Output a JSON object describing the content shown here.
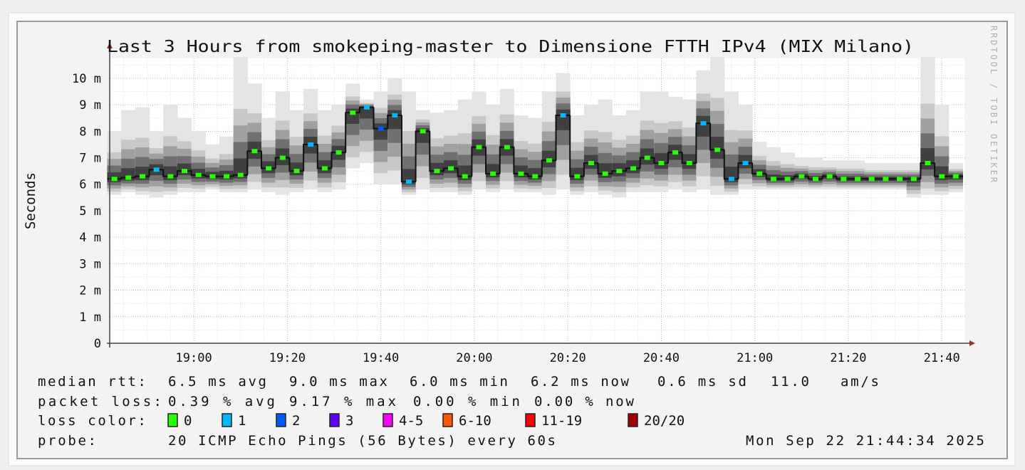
{
  "chart_data": {
    "type": "line",
    "title": "Last 3 Hours from smokeping-master to Dimensione FTTH IPv4 (MIX Milano)",
    "ylabel": "Seconds",
    "watermark": "RRDTOOL / TOBI OETIKER",
    "ylim": [
      0,
      10.75
    ],
    "y_unit": "ms",
    "yticks": [
      {
        "value": 0,
        "label": "0"
      },
      {
        "value": 1,
        "label": "1 m"
      },
      {
        "value": 2,
        "label": "2 m"
      },
      {
        "value": 3,
        "label": "3 m"
      },
      {
        "value": 4,
        "label": "4 m"
      },
      {
        "value": 5,
        "label": "5 m"
      },
      {
        "value": 6,
        "label": "6 m"
      },
      {
        "value": 7,
        "label": "7 m"
      },
      {
        "value": 8,
        "label": "8 m"
      },
      {
        "value": 9,
        "label": "9 m"
      },
      {
        "value": 10,
        "label": "10 m"
      }
    ],
    "xlim": [
      "18:42",
      "21:45"
    ],
    "xticks": [
      "19:00",
      "19:20",
      "19:40",
      "20:00",
      "20:20",
      "20:40",
      "21:00",
      "21:20",
      "21:40"
    ],
    "grid": true,
    "x": [
      "18:43",
      "18:46",
      "18:49",
      "18:52",
      "18:55",
      "18:58",
      "19:01",
      "19:04",
      "19:07",
      "19:10",
      "19:13",
      "19:16",
      "19:19",
      "19:22",
      "19:25",
      "19:28",
      "19:31",
      "19:34",
      "19:37",
      "19:40",
      "19:43",
      "19:46",
      "19:49",
      "19:52",
      "19:55",
      "19:58",
      "20:01",
      "20:04",
      "20:07",
      "20:10",
      "20:13",
      "20:16",
      "20:19",
      "20:22",
      "20:25",
      "20:28",
      "20:31",
      "20:34",
      "20:37",
      "20:40",
      "20:43",
      "20:46",
      "20:49",
      "20:52",
      "20:55",
      "20:58",
      "21:01",
      "21:04",
      "21:07",
      "21:10",
      "21:13",
      "21:16",
      "21:19",
      "21:22",
      "21:25",
      "21:28",
      "21:31",
      "21:34",
      "21:37",
      "21:40",
      "21:43"
    ],
    "median": [
      6.2,
      6.25,
      6.3,
      6.55,
      6.3,
      6.5,
      6.35,
      6.3,
      6.3,
      6.35,
      7.25,
      6.6,
      7.0,
      6.5,
      7.5,
      6.6,
      7.2,
      8.7,
      8.9,
      8.1,
      8.6,
      6.1,
      8.0,
      6.5,
      6.6,
      6.3,
      7.4,
      6.4,
      7.4,
      6.4,
      6.3,
      6.9,
      8.6,
      6.3,
      6.8,
      6.4,
      6.5,
      6.6,
      7.0,
      6.8,
      7.2,
      6.8,
      8.3,
      7.3,
      6.2,
      6.8,
      6.4,
      6.2,
      6.2,
      6.3,
      6.2,
      6.3,
      6.2,
      6.2,
      6.2,
      6.2,
      6.2,
      6.2,
      6.8,
      6.3,
      6.3
    ],
    "loss": [
      0,
      0,
      0,
      1,
      0,
      0,
      0,
      0,
      0,
      0,
      0,
      0,
      0,
      0,
      1,
      0,
      0,
      0,
      1,
      2,
      1,
      1,
      0,
      0,
      0,
      0,
      0,
      0,
      0,
      0,
      0,
      0,
      1,
      0,
      0,
      0,
      0,
      0,
      0,
      0,
      0,
      0,
      1,
      0,
      1,
      1,
      0,
      0,
      0,
      0,
      0,
      0,
      0,
      0,
      0,
      0,
      0,
      0,
      0,
      0,
      0
    ],
    "smoke_min": [
      5.6,
      5.7,
      5.6,
      5.5,
      5.6,
      5.7,
      5.7,
      5.8,
      5.7,
      5.7,
      5.8,
      5.7,
      5.6,
      5.7,
      5.8,
      5.7,
      5.8,
      6.6,
      6.8,
      6.0,
      6.0,
      5.6,
      5.8,
      5.7,
      5.7,
      5.6,
      5.8,
      5.7,
      5.8,
      5.7,
      5.7,
      5.6,
      5.8,
      5.6,
      5.7,
      5.6,
      5.5,
      5.7,
      5.7,
      5.7,
      5.8,
      5.7,
      5.8,
      5.6,
      5.6,
      5.8,
      5.8,
      5.8,
      5.8,
      5.8,
      5.8,
      5.8,
      5.8,
      5.8,
      5.8,
      5.8,
      5.8,
      5.5,
      5.6,
      5.6,
      5.7
    ],
    "smoke_max": [
      8.0,
      8.8,
      8.9,
      8.0,
      9.0,
      8.5,
      8.0,
      7.5,
      7.8,
      10.8,
      9.8,
      8.5,
      9.5,
      8.8,
      9.6,
      8.8,
      9.0,
      9.8,
      9.2,
      9.5,
      10.0,
      9.5,
      8.8,
      8.7,
      8.8,
      9.2,
      9.5,
      9.0,
      9.6,
      8.6,
      8.5,
      9.5,
      10.2,
      8.6,
      9.0,
      9.2,
      8.6,
      8.8,
      9.5,
      9.5,
      9.3,
      9.2,
      10.3,
      10.8,
      9.5,
      9.0,
      7.6,
      7.4,
      7.2,
      7.0,
      7.0,
      6.9,
      6.9,
      6.9,
      6.8,
      6.8,
      6.8,
      6.8,
      10.8,
      9.0,
      6.8
    ],
    "loss_colors": {
      "0": "#26ff00",
      "1": "#00b8ff",
      "2": "#0059ff",
      "3": "#5e00ff",
      "4-5": "#ff00ff",
      "6-10": "#ff5500",
      "11-19": "#ff0000",
      "20/20": "#a10000"
    }
  },
  "legend": {
    "median_rtt": {
      "label": "median rtt:",
      "avg": "6.5 ms avg",
      "max": "9.0 ms max",
      "min": "6.0 ms min",
      "now": "6.2 ms now",
      "sd": "0.6 ms sd",
      "ams": "11.0",
      "ams_unit": "am/s"
    },
    "packet_loss": {
      "label": "packet loss:",
      "avg": "0.39 % avg",
      "max": "9.17 % max",
      "min": "0.00 % min",
      "now": "0.00 % now"
    },
    "loss_color": {
      "label": "loss color:",
      "items": [
        {
          "label": "0",
          "color": "#26ff00"
        },
        {
          "label": "1",
          "color": "#00b8ff"
        },
        {
          "label": "2",
          "color": "#0059ff"
        },
        {
          "label": "3",
          "color": "#5e00ff"
        },
        {
          "label": "4-5",
          "color": "#ff00ff"
        },
        {
          "label": "6-10",
          "color": "#ff5500"
        },
        {
          "label": "11-19",
          "color": "#ff0000"
        },
        {
          "label": "20/20",
          "color": "#a10000"
        }
      ]
    },
    "probe": {
      "label": "probe:",
      "value": "20 ICMP Echo Pings (56 Bytes) every 60s",
      "timestamp": "Mon Sep 22 21:44:34 2025"
    }
  }
}
